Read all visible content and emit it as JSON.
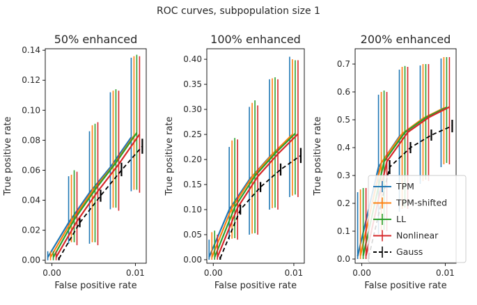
{
  "suptitle": "ROC curves, subpopulation size 1",
  "legend": {
    "location": "lower-right of third panel",
    "entries": [
      {
        "label": "TPM",
        "color": "#1f77b4",
        "style": "solid"
      },
      {
        "label": "TPM-shifted",
        "color": "#ff7f0e",
        "style": "solid"
      },
      {
        "label": "LL",
        "color": "#2ca02c",
        "style": "solid"
      },
      {
        "label": "Nonlinear",
        "color": "#d62728",
        "style": "solid"
      },
      {
        "label": "Gauss",
        "color": "#000000",
        "style": "dashed"
      }
    ]
  },
  "chart_data": [
    {
      "type": "line",
      "title": "50% enhanced",
      "xlabel": "False positive rate",
      "ylabel": "True positive rate",
      "xlim": [
        -0.0008,
        0.0113
      ],
      "ylim": [
        -0.002,
        0.141
      ],
      "xticks": [
        0.0,
        0.01
      ],
      "xtick_labels": [
        "0.00",
        "0.01"
      ],
      "yticks": [
        0.0,
        0.02,
        0.04,
        0.06,
        0.08,
        0.1,
        0.12,
        0.14
      ],
      "ytick_labels": [
        "0.00",
        "0.02",
        "0.04",
        "0.06",
        "0.08",
        "0.10",
        "0.12",
        "0.14"
      ],
      "x": [
        0.0,
        0.0025,
        0.005,
        0.0075,
        0.01
      ],
      "series": [
        {
          "name": "TPM",
          "color": "#1f77b4",
          "values": [
            0.002,
            0.025,
            0.045,
            0.062,
            0.082
          ],
          "err_lo": [
            0.0,
            0.011,
            0.011,
            0.034,
            0.046
          ],
          "err_hi": [
            0.006,
            0.056,
            0.086,
            0.112,
            0.135
          ]
        },
        {
          "name": "TPM-shifted",
          "color": "#ff7f0e",
          "values": [
            0.002,
            0.026,
            0.046,
            0.063,
            0.083
          ],
          "err_lo": [
            0.0,
            0.012,
            0.012,
            0.035,
            0.047
          ],
          "err_hi": [
            0.006,
            0.057,
            0.09,
            0.113,
            0.136
          ]
        },
        {
          "name": "LL",
          "color": "#2ca02c",
          "values": [
            0.002,
            0.027,
            0.047,
            0.065,
            0.085
          ],
          "err_lo": [
            0.0,
            0.012,
            0.012,
            0.035,
            0.047
          ],
          "err_hi": [
            0.006,
            0.06,
            0.091,
            0.114,
            0.137
          ]
        },
        {
          "name": "Nonlinear",
          "color": "#d62728",
          "values": [
            0.002,
            0.026,
            0.046,
            0.064,
            0.084
          ],
          "err_lo": [
            0.0,
            0.01,
            0.01,
            0.033,
            0.045
          ],
          "err_hi": [
            0.006,
            0.059,
            0.092,
            0.113,
            0.136
          ]
        },
        {
          "name": "Gauss",
          "color": "#000000",
          "dashed": true,
          "values": [
            0.001,
            0.025,
            0.043,
            0.06,
            0.076
          ],
          "err_lo": [
            0.0,
            0.022,
            0.039,
            0.056,
            0.071
          ],
          "err_hi": [
            0.002,
            0.028,
            0.047,
            0.065,
            0.081
          ]
        }
      ]
    },
    {
      "type": "line",
      "title": "100% enhanced",
      "xlabel": "False positive rate",
      "ylabel": "True positive rate",
      "xlim": [
        -0.0008,
        0.0113
      ],
      "ylim": [
        -0.007,
        0.421
      ],
      "xticks": [
        0.0,
        0.01
      ],
      "xtick_labels": [
        "0.00",
        "0.01"
      ],
      "yticks": [
        0.0,
        0.05,
        0.1,
        0.15,
        0.2,
        0.25,
        0.3,
        0.35,
        0.4
      ],
      "ytick_labels": [
        "0.00",
        "0.05",
        "0.10",
        "0.15",
        "0.20",
        "0.25",
        "0.30",
        "0.35",
        "0.40"
      ],
      "x": [
        0.0,
        0.0025,
        0.005,
        0.0075,
        0.01
      ],
      "series": [
        {
          "name": "TPM",
          "color": "#1f77b4",
          "values": [
            0.005,
            0.1,
            0.16,
            0.205,
            0.244
          ],
          "err_lo": [
            0.0,
            0.04,
            0.05,
            0.1,
            0.125
          ],
          "err_hi": [
            0.04,
            0.225,
            0.305,
            0.36,
            0.405
          ]
        },
        {
          "name": "TPM-shifted",
          "color": "#ff7f0e",
          "values": [
            0.005,
            0.104,
            0.165,
            0.21,
            0.25
          ],
          "err_lo": [
            0.0,
            0.042,
            0.052,
            0.103,
            0.128
          ],
          "err_hi": [
            0.055,
            0.238,
            0.313,
            0.362,
            0.4
          ]
        },
        {
          "name": "LL",
          "color": "#2ca02c",
          "values": [
            0.005,
            0.105,
            0.167,
            0.212,
            0.252
          ],
          "err_lo": [
            0.0,
            0.043,
            0.053,
            0.104,
            0.13
          ],
          "err_hi": [
            0.058,
            0.243,
            0.318,
            0.364,
            0.398
          ]
        },
        {
          "name": "Nonlinear",
          "color": "#d62728",
          "values": [
            0.005,
            0.104,
            0.166,
            0.211,
            0.251
          ],
          "err_lo": [
            0.0,
            0.04,
            0.05,
            0.1,
            0.125
          ],
          "err_hi": [
            0.05,
            0.24,
            0.308,
            0.36,
            0.398
          ]
        },
        {
          "name": "Gauss",
          "color": "#000000",
          "dashed": true,
          "values": [
            0.003,
            0.1,
            0.145,
            0.18,
            0.208
          ],
          "err_lo": [
            0.0,
            0.09,
            0.135,
            0.168,
            0.193
          ],
          "err_hi": [
            0.006,
            0.11,
            0.155,
            0.192,
            0.223
          ]
        }
      ]
    },
    {
      "type": "line",
      "title": "200% enhanced",
      "xlabel": "False positive rate",
      "ylabel": "True positive rate",
      "xlim": [
        -0.0008,
        0.0113
      ],
      "ylim": [
        -0.015,
        0.755
      ],
      "xticks": [
        0.0,
        0.01
      ],
      "xtick_labels": [
        "0.00",
        "0.01"
      ],
      "yticks": [
        0.0,
        0.1,
        0.2,
        0.3,
        0.4,
        0.5,
        0.6,
        0.7
      ],
      "ytick_labels": [
        "0.0",
        "0.1",
        "0.2",
        "0.3",
        "0.4",
        "0.5",
        "0.6",
        "0.7"
      ],
      "x": [
        0.0,
        0.0025,
        0.005,
        0.0075,
        0.01
      ],
      "series": [
        {
          "name": "TPM",
          "color": "#1f77b4",
          "values": [
            0.01,
            0.33,
            0.44,
            0.495,
            0.535
          ],
          "err_lo": [
            0.0,
            0.09,
            0.17,
            0.27,
            0.33
          ],
          "err_hi": [
            0.24,
            0.59,
            0.68,
            0.695,
            0.72
          ]
        },
        {
          "name": "TPM-shifted",
          "color": "#ff7f0e",
          "values": [
            0.012,
            0.345,
            0.45,
            0.505,
            0.542
          ],
          "err_lo": [
            0.0,
            0.1,
            0.18,
            0.28,
            0.34
          ],
          "err_hi": [
            0.25,
            0.6,
            0.69,
            0.7,
            0.725
          ]
        },
        {
          "name": "LL",
          "color": "#2ca02c",
          "values": [
            0.012,
            0.35,
            0.455,
            0.508,
            0.545
          ],
          "err_lo": [
            0.0,
            0.105,
            0.185,
            0.285,
            0.345
          ],
          "err_hi": [
            0.255,
            0.605,
            0.693,
            0.7,
            0.725
          ]
        },
        {
          "name": "Nonlinear",
          "color": "#d62728",
          "values": [
            0.012,
            0.35,
            0.455,
            0.508,
            0.546
          ],
          "err_lo": [
            0.0,
            0.1,
            0.18,
            0.28,
            0.34
          ],
          "err_hi": [
            0.255,
            0.6,
            0.69,
            0.7,
            0.725
          ]
        },
        {
          "name": "Gauss",
          "color": "#000000",
          "dashed": true,
          "values": [
            0.008,
            0.33,
            0.4,
            0.445,
            0.478
          ],
          "err_lo": [
            0.0,
            0.305,
            0.38,
            0.425,
            0.455
          ],
          "err_hi": [
            0.02,
            0.355,
            0.42,
            0.465,
            0.5
          ]
        }
      ]
    }
  ]
}
